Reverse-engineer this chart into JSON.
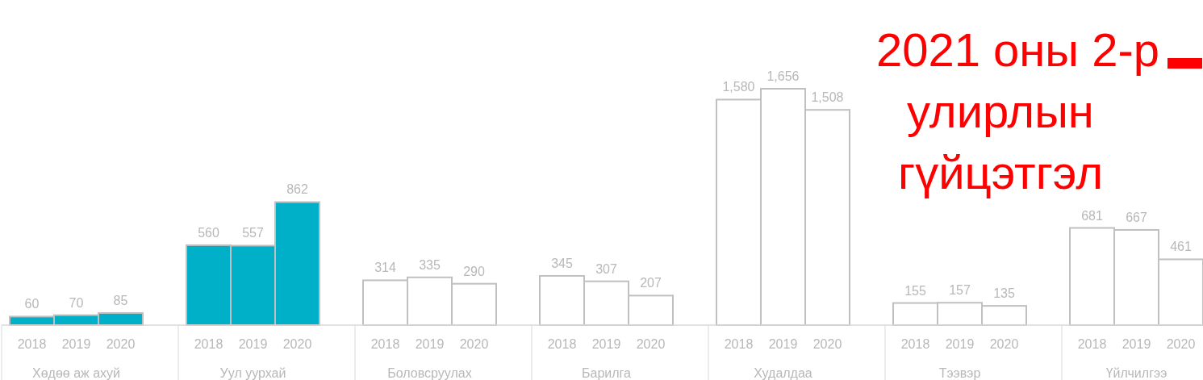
{
  "chart_data": {
    "type": "bar",
    "title": "2021 оны 2-р улирлын гүйцэтгэл",
    "categories": [
      "Хөдөө аж ахуй",
      "Уул уурхай",
      "Боловсруулах",
      "Барилга",
      "Худалдаа",
      "Тээвэр",
      "Үйлчилгээ"
    ],
    "series": [
      {
        "name": "2018",
        "colors": [
          "#00b0c8",
          "#00b0c8",
          "#ffffff",
          "#ffffff",
          "#ffffff",
          "#ffffff",
          "#ffffff"
        ],
        "values": [
          60,
          560,
          314,
          345,
          1580,
          155,
          681
        ],
        "value_labels": [
          "60",
          "560",
          "314",
          "345",
          "1,580",
          "155",
          "681"
        ]
      },
      {
        "name": "2019",
        "colors": [
          "#00b0c8",
          "#00b0c8",
          "#ffffff",
          "#ffffff",
          "#ffffff",
          "#ffffff",
          "#ffffff"
        ],
        "values": [
          70,
          557,
          335,
          307,
          1656,
          157,
          667
        ],
        "value_labels": [
          "70",
          "557",
          "335",
          "307",
          "1,656",
          "157",
          "667"
        ]
      },
      {
        "name": "2020",
        "colors": [
          "#00b0c8",
          "#00b0c8",
          "#ffffff",
          "#ffffff",
          "#ffffff",
          "#ffffff",
          "#ffffff"
        ],
        "values": [
          85,
          862,
          290,
          207,
          1508,
          135,
          461
        ],
        "value_labels": [
          "85",
          "862",
          "290",
          "207",
          "1,508",
          "135",
          "461"
        ]
      }
    ],
    "grid": false
  }
}
